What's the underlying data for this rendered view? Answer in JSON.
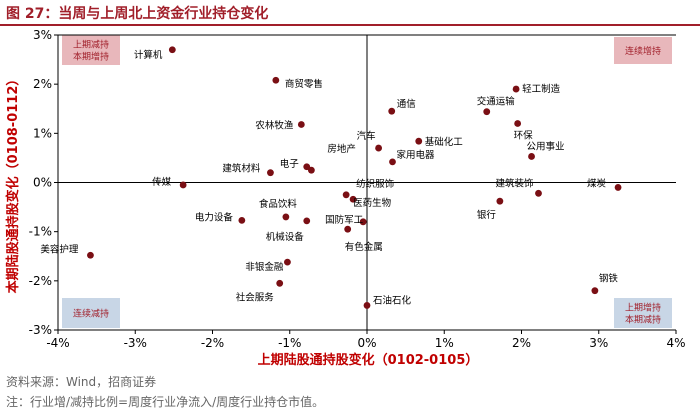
{
  "figure": {
    "title": "图 27：当周与上周北上资金行业持仓变化",
    "source": "资料来源：Wind，招商证券",
    "note": "注：行业增/减持比例=周度行业净流入/周度行业持仓市值。"
  },
  "colors": {
    "title": "#a11f2a",
    "point": "#7a0f14",
    "axis_label": "#c00000",
    "box_pink": "#e8b7bb",
    "box_blue": "#c8d6e6",
    "axis": "#000000"
  },
  "chart_data": {
    "type": "scatter",
    "xlabel": "上期陆股通持股变化（0102-0105）",
    "ylabel": "本期陆股通持股变化（0108-0112）",
    "xlim": [
      -4,
      4
    ],
    "ylim": [
      -3,
      3
    ],
    "x_ticks": [
      "-4%",
      "-3%",
      "-2%",
      "-1%",
      "0%",
      "1%",
      "2%",
      "3%",
      "4%"
    ],
    "y_ticks": [
      "3%",
      "2%",
      "1%",
      "0%",
      "-1%",
      "-2%",
      "-3%"
    ],
    "x_tick_values": [
      -4,
      -3,
      -2,
      -1,
      0,
      1,
      2,
      3,
      4
    ],
    "y_tick_values": [
      3,
      2,
      1,
      0,
      -1,
      -2,
      -3
    ],
    "grid": false,
    "quadrant_labels": {
      "top_left": "上期减持\n本期增持",
      "top_right": "连续增持",
      "bottom_left": "连续减持",
      "bottom_right": "上期增持\n本期减持"
    },
    "points": [
      {
        "name": "计算机",
        "x": -2.52,
        "y": 2.7
      },
      {
        "name": "商贸零售",
        "x": -1.18,
        "y": 2.08
      },
      {
        "name": "农林牧渔",
        "x": -0.85,
        "y": 1.18
      },
      {
        "name": "电子",
        "x": -0.78,
        "y": 0.32
      },
      {
        "name": "房地产",
        "x": -0.72,
        "y": 0.25
      },
      {
        "name": "建筑材料",
        "x": -1.25,
        "y": 0.2
      },
      {
        "name": "传媒",
        "x": -2.38,
        "y": -0.05
      },
      {
        "name": "通信",
        "x": 0.32,
        "y": 1.45
      },
      {
        "name": "汽车",
        "x": 0.15,
        "y": 0.7
      },
      {
        "name": "家用电器",
        "x": 0.33,
        "y": 0.42
      },
      {
        "name": "基础化工",
        "x": 0.67,
        "y": 0.84
      },
      {
        "name": "轻工制造",
        "x": 1.93,
        "y": 1.9
      },
      {
        "name": "交通运输",
        "x": 1.55,
        "y": 1.44
      },
      {
        "name": "环保",
        "x": 1.95,
        "y": 1.2
      },
      {
        "name": "公用事业",
        "x": 2.13,
        "y": 0.53
      },
      {
        "name": "建筑装饰",
        "x": 2.22,
        "y": -0.22
      },
      {
        "name": "煤炭",
        "x": 3.25,
        "y": -0.1
      },
      {
        "name": "纺织服饰",
        "x": -0.27,
        "y": -0.25
      },
      {
        "name": "医药生物",
        "x": -0.18,
        "y": -0.34
      },
      {
        "name": "国防军工",
        "x": -0.05,
        "y": -0.8
      },
      {
        "name": "有色金属",
        "x": -0.25,
        "y": -0.95
      },
      {
        "name": "银行",
        "x": 1.72,
        "y": -0.38
      },
      {
        "name": "食品饮料",
        "x": -1.05,
        "y": -0.7
      },
      {
        "name": "电力设备",
        "x": -1.62,
        "y": -0.77
      },
      {
        "name": "机械设备",
        "x": -0.78,
        "y": -0.78
      },
      {
        "name": "美容护理",
        "x": -3.58,
        "y": -1.48
      },
      {
        "name": "非银金融",
        "x": -1.03,
        "y": -1.62
      },
      {
        "name": "社会服务",
        "x": -1.13,
        "y": -2.05
      },
      {
        "name": "石油石化",
        "x": 0.0,
        "y": -2.5
      },
      {
        "name": "钢铁",
        "x": 2.95,
        "y": -2.2
      }
    ]
  }
}
